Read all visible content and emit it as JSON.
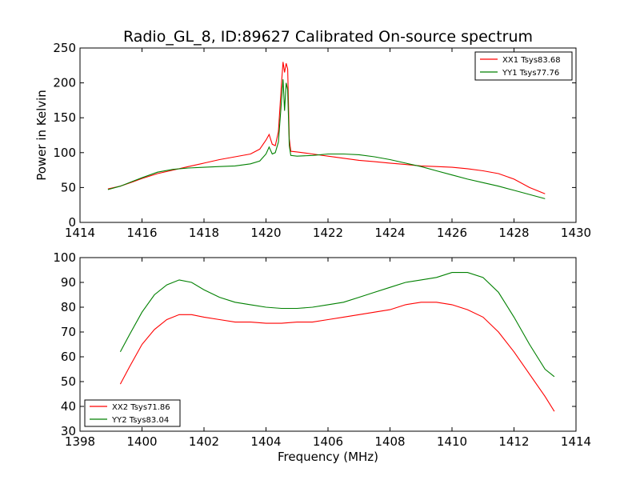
{
  "chart_data": [
    {
      "type": "line",
      "title": "Radio_GL_8, ID:89627 Calibrated On-source spectrum",
      "xlabel": "",
      "ylabel": "Power in Kelvin",
      "xlim": [
        1414,
        1430
      ],
      "ylim": [
        0,
        250
      ],
      "xticks": [
        "1414",
        "1416",
        "1418",
        "1420",
        "1422",
        "1424",
        "1426",
        "1428",
        "1430"
      ],
      "yticks": [
        "0",
        "50",
        "100",
        "150",
        "200",
        "250"
      ],
      "grid": false,
      "legend_position": "top-right",
      "series": [
        {
          "name": "XX1 Tsys83.68",
          "color": "#ff0000",
          "points": [
            [
              1414.9,
              48
            ],
            [
              1415.3,
              52
            ],
            [
              1415.7,
              58
            ],
            [
              1416.0,
              63
            ],
            [
              1416.5,
              70
            ],
            [
              1417.0,
              75
            ],
            [
              1417.5,
              80
            ],
            [
              1418.0,
              85
            ],
            [
              1418.5,
              90
            ],
            [
              1419.0,
              94
            ],
            [
              1419.5,
              98
            ],
            [
              1419.8,
              105
            ],
            [
              1420.0,
              118
            ],
            [
              1420.1,
              126
            ],
            [
              1420.2,
              112
            ],
            [
              1420.3,
              110
            ],
            [
              1420.4,
              130
            ],
            [
              1420.5,
              200
            ],
            [
              1420.55,
              230
            ],
            [
              1420.6,
              215
            ],
            [
              1420.65,
              228
            ],
            [
              1420.7,
              220
            ],
            [
              1420.75,
              120
            ],
            [
              1420.8,
              102
            ],
            [
              1421.0,
              101
            ],
            [
              1421.5,
              98
            ],
            [
              1422.0,
              95
            ],
            [
              1422.5,
              92
            ],
            [
              1423.0,
              89
            ],
            [
              1423.5,
              87
            ],
            [
              1424.0,
              85
            ],
            [
              1424.5,
              83
            ],
            [
              1425.0,
              81
            ],
            [
              1425.5,
              80
            ],
            [
              1426.0,
              79
            ],
            [
              1426.5,
              77
            ],
            [
              1427.0,
              74
            ],
            [
              1427.5,
              70
            ],
            [
              1428.0,
              62
            ],
            [
              1428.5,
              50
            ],
            [
              1429.0,
              41
            ]
          ]
        },
        {
          "name": "YY1 Tsys77.76",
          "color": "#008000",
          "points": [
            [
              1414.9,
              47
            ],
            [
              1415.3,
              52
            ],
            [
              1415.7,
              59
            ],
            [
              1416.0,
              64
            ],
            [
              1416.5,
              72
            ],
            [
              1417.0,
              76
            ],
            [
              1417.5,
              78
            ],
            [
              1418.0,
              79
            ],
            [
              1418.5,
              80
            ],
            [
              1419.0,
              81
            ],
            [
              1419.5,
              84
            ],
            [
              1419.8,
              88
            ],
            [
              1420.0,
              98
            ],
            [
              1420.1,
              108
            ],
            [
              1420.2,
              98
            ],
            [
              1420.3,
              100
            ],
            [
              1420.4,
              115
            ],
            [
              1420.5,
              175
            ],
            [
              1420.55,
              205
            ],
            [
              1420.6,
              160
            ],
            [
              1420.65,
              200
            ],
            [
              1420.7,
              190
            ],
            [
              1420.75,
              110
            ],
            [
              1420.8,
              96
            ],
            [
              1421.0,
              95
            ],
            [
              1421.5,
              96
            ],
            [
              1422.0,
              98
            ],
            [
              1422.5,
              98
            ],
            [
              1423.0,
              97
            ],
            [
              1423.5,
              94
            ],
            [
              1424.0,
              90
            ],
            [
              1424.5,
              85
            ],
            [
              1425.0,
              80
            ],
            [
              1425.5,
              74
            ],
            [
              1426.0,
              68
            ],
            [
              1426.5,
              62
            ],
            [
              1427.0,
              57
            ],
            [
              1427.5,
              52
            ],
            [
              1428.0,
              46
            ],
            [
              1428.5,
              40
            ],
            [
              1429.0,
              34
            ]
          ]
        }
      ]
    },
    {
      "type": "line",
      "title": "",
      "xlabel": "Frequency (MHz)",
      "ylabel": "",
      "xlim": [
        1398,
        1414
      ],
      "ylim": [
        30,
        100
      ],
      "xticks": [
        "1398",
        "1400",
        "1402",
        "1404",
        "1406",
        "1408",
        "1410",
        "1412",
        "1414"
      ],
      "yticks": [
        "30",
        "40",
        "50",
        "60",
        "70",
        "80",
        "90",
        "100"
      ],
      "grid": false,
      "legend_position": "bottom-left",
      "series": [
        {
          "name": "XX2 Tsys71.86",
          "color": "#ff0000",
          "points": [
            [
              1399.3,
              49
            ],
            [
              1399.6,
              56
            ],
            [
              1400.0,
              65
            ],
            [
              1400.4,
              71
            ],
            [
              1400.8,
              75
            ],
            [
              1401.2,
              77
            ],
            [
              1401.6,
              77
            ],
            [
              1402.0,
              76
            ],
            [
              1402.5,
              75
            ],
            [
              1403.0,
              74
            ],
            [
              1403.5,
              74
            ],
            [
              1404.0,
              73.5
            ],
            [
              1404.5,
              73.5
            ],
            [
              1405.0,
              74
            ],
            [
              1405.5,
              74
            ],
            [
              1406.0,
              75
            ],
            [
              1406.5,
              76
            ],
            [
              1407.0,
              77
            ],
            [
              1407.5,
              78
            ],
            [
              1408.0,
              79
            ],
            [
              1408.5,
              81
            ],
            [
              1409.0,
              82
            ],
            [
              1409.5,
              82
            ],
            [
              1410.0,
              81
            ],
            [
              1410.5,
              79
            ],
            [
              1411.0,
              76
            ],
            [
              1411.5,
              70
            ],
            [
              1412.0,
              62
            ],
            [
              1412.5,
              53
            ],
            [
              1413.0,
              44
            ],
            [
              1413.3,
              38
            ]
          ]
        },
        {
          "name": "YY2 Tsys83.04",
          "color": "#008000",
          "points": [
            [
              1399.3,
              62
            ],
            [
              1399.6,
              69
            ],
            [
              1400.0,
              78
            ],
            [
              1400.4,
              85
            ],
            [
              1400.8,
              89
            ],
            [
              1401.2,
              91
            ],
            [
              1401.6,
              90
            ],
            [
              1402.0,
              87
            ],
            [
              1402.5,
              84
            ],
            [
              1403.0,
              82
            ],
            [
              1403.5,
              81
            ],
            [
              1404.0,
              80
            ],
            [
              1404.5,
              79.5
            ],
            [
              1405.0,
              79.5
            ],
            [
              1405.5,
              80
            ],
            [
              1406.0,
              81
            ],
            [
              1406.5,
              82
            ],
            [
              1407.0,
              84
            ],
            [
              1407.5,
              86
            ],
            [
              1408.0,
              88
            ],
            [
              1408.5,
              90
            ],
            [
              1409.0,
              91
            ],
            [
              1409.5,
              92
            ],
            [
              1410.0,
              94
            ],
            [
              1410.5,
              94
            ],
            [
              1411.0,
              92
            ],
            [
              1411.5,
              86
            ],
            [
              1412.0,
              76
            ],
            [
              1412.5,
              65
            ],
            [
              1413.0,
              55
            ],
            [
              1413.3,
              52
            ]
          ]
        }
      ]
    }
  ]
}
